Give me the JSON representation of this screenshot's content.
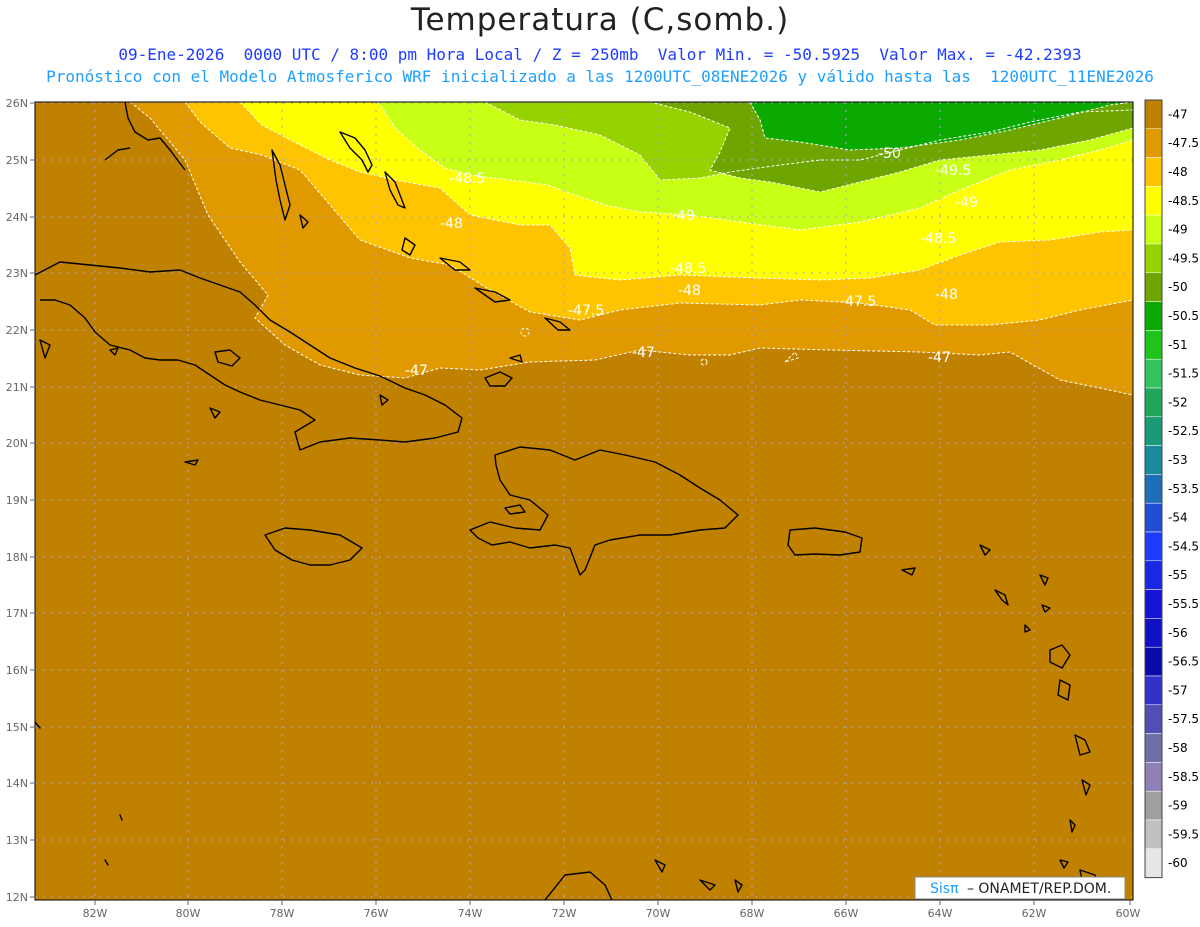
{
  "title": "Temperatura (C,somb.)",
  "subtitle1": "09-Ene-2026  0000 UTC / 8:00 pm Hora Local / Z = 250mb  Valor Min. = -50.5925  Valor Max. = -42.2393",
  "subtitle2": "Pronóstico con el Modelo Atmosferico WRF inicializado a las 1200UTC_08ENE2026 y válido hasta las  1200UTC_11ENE2026",
  "lat_ticks": [
    "26N",
    "25N",
    "24N",
    "23N",
    "22N",
    "21N",
    "20N",
    "19N",
    "18N",
    "17N",
    "16N",
    "15N",
    "14N",
    "13N",
    "12N"
  ],
  "lon_ticks": [
    "82W",
    "80W",
    "78W",
    "76W",
    "74W",
    "72W",
    "70W",
    "68W",
    "66W",
    "64W",
    "62W",
    "60W"
  ],
  "contour_labels": [
    "-50",
    "-49.5",
    "-49",
    "-48.5",
    "-49",
    "-48.5",
    "-48.5",
    "-48",
    "-48",
    "-48",
    "-47.5",
    "-47.5",
    "-47",
    "-47",
    "-47"
  ],
  "legend": {
    "levels": [
      "-47",
      "-47.5",
      "-48",
      "-48.5",
      "-49",
      "-49.5",
      "-50",
      "-50.5",
      "-51",
      "-51.5",
      "-52",
      "-52.5",
      "-53",
      "-53.5",
      "-54",
      "-54.5",
      "-55",
      "-55.5",
      "-56",
      "-56.5",
      "-57",
      "-57.5",
      "-58",
      "-58.5",
      "-59",
      "-59.5",
      "-60"
    ],
    "colors": [
      "#c08000",
      "#e09a00",
      "#ffc400",
      "#ffff00",
      "#c8ff14",
      "#96d200",
      "#6ea500",
      "#0aaa00",
      "#1cc41c",
      "#31c45e",
      "#21a65a",
      "#1c9a78",
      "#1a8a9c",
      "#1f6eb8",
      "#1f4ed2",
      "#1e3cff",
      "#1a28e6",
      "#1414d8",
      "#1010c4",
      "#0a0aaa",
      "#3232c8",
      "#5050b4",
      "#7070a8",
      "#9080b8",
      "#a0a0a0",
      "#c0c0c0",
      "#e6e6e6"
    ]
  },
  "credit": {
    "brand": "Sisπ",
    "text": "– ONAMET/REP.DOM."
  },
  "colors": {
    "t_minus_47": "#c08000",
    "t_minus_47_5": "#e09a00",
    "t_minus_48": "#ffc400",
    "t_minus_48_5": "#ffff00",
    "t_minus_49": "#c8ff14",
    "t_minus_49_5": "#96d200",
    "t_minus_50": "#6ea500",
    "t_minus_50_5": "#0aaa00"
  }
}
